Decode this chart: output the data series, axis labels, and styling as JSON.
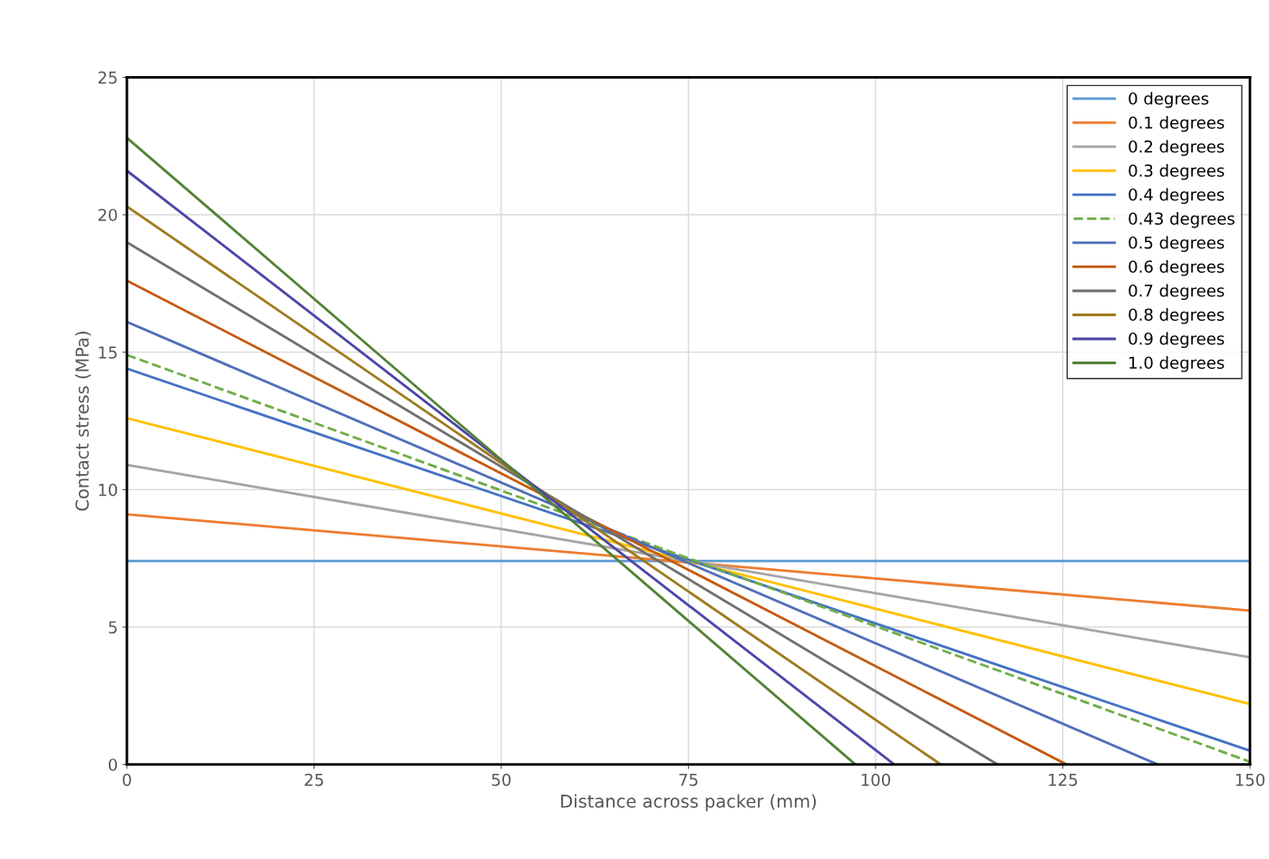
{
  "chart_data": {
    "type": "line",
    "xlabel": "Distance across packer (mm)",
    "ylabel": "Contact stress (MPa)",
    "xlim": [
      0,
      150
    ],
    "xticks": [
      0,
      25,
      50,
      75,
      100,
      125,
      150
    ],
    "ylim": [
      0,
      25
    ],
    "yticks": [
      0,
      5,
      10,
      15,
      20,
      25
    ],
    "grid": true,
    "legend": "top right",
    "marker": "none",
    "series": [
      {
        "name": "0 degrees",
        "color": "#5b9bd5",
        "x": [
          0,
          150
        ],
        "values": [
          7.4,
          7.4
        ]
      },
      {
        "name": "0.1 degrees",
        "color": "#ed7d31",
        "x": [
          0,
          150
        ],
        "values": [
          9.1,
          5.6
        ]
      },
      {
        "name": "0.2 degrees",
        "color": "#a5a5a5",
        "x": [
          0,
          150
        ],
        "values": [
          10.9,
          3.9
        ]
      },
      {
        "name": "0.3 degrees",
        "color": "#ffc000",
        "x": [
          0,
          150
        ],
        "values": [
          12.6,
          2.2
        ]
      },
      {
        "name": "0.4 degrees",
        "color": "#4472c4",
        "x": [
          0,
          150
        ],
        "values": [
          14.4,
          0.5
        ]
      },
      {
        "name": "0.43 degrees",
        "color": "#70ad47",
        "line_style": "dashed",
        "x": [
          0,
          150
        ],
        "values": [
          14.9,
          0.1
        ]
      },
      {
        "name": "0.5 degrees",
        "color": "#4f6fb8",
        "x": [
          0,
          137.7
        ],
        "values": [
          16.1,
          0
        ]
      },
      {
        "name": "0.6 degrees",
        "color": "#c55a11",
        "x": [
          0,
          125.5
        ],
        "values": [
          17.6,
          0
        ]
      },
      {
        "name": "0.7 degrees",
        "color": "#6f6f6f",
        "x": [
          0,
          116.3
        ],
        "values": [
          19.0,
          0
        ]
      },
      {
        "name": "0.8 degrees",
        "color": "#9e7b1f",
        "x": [
          0,
          108.7
        ],
        "values": [
          20.3,
          0
        ]
      },
      {
        "name": "0.9 degrees",
        "color": "#4b46a8",
        "x": [
          0,
          102.5
        ],
        "values": [
          21.6,
          0
        ]
      },
      {
        "name": "1.0 degrees",
        "color": "#548235",
        "x": [
          0,
          97.3
        ],
        "values": [
          22.8,
          0
        ]
      }
    ]
  }
}
